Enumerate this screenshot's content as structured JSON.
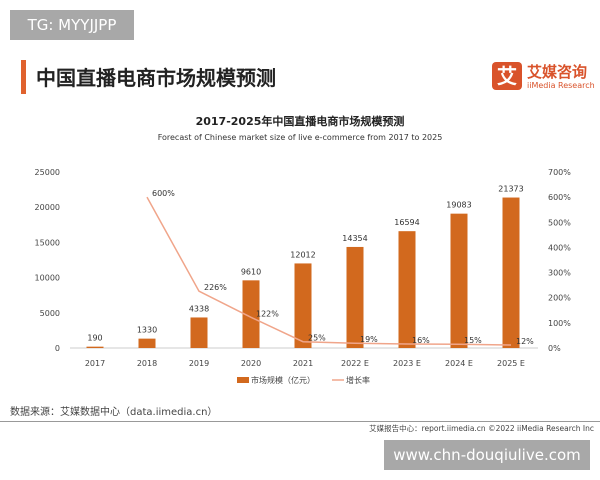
{
  "watermarks": {
    "top_left": "TG: MYYJJPP",
    "bottom_right": "www.chn-douqiulive.com"
  },
  "header": {
    "title": "中国直播电商市场规模预测",
    "logo_mark": "艾",
    "logo_cn": "艾媒咨询",
    "logo_en": "iiMedia Research"
  },
  "chart_data": {
    "type": "bar",
    "title": "2017-2025年中国直播电商市场规模预测",
    "subtitle": "Forecast of Chinese market size of live e-commerce from 2017 to 2025",
    "categories": [
      "2017",
      "2018",
      "2019",
      "2020",
      "2021",
      "2022 E",
      "2023 E",
      "2024 E",
      "2025 E"
    ],
    "series": [
      {
        "name": "市场规模（亿元）",
        "type": "bar",
        "axis": "left",
        "color": "#d2691e",
        "values": [
          190,
          1330,
          4338,
          9610,
          12012,
          14354,
          16594,
          19083,
          21373
        ],
        "labels": [
          "190",
          "1330",
          "4338",
          "9610",
          "12012",
          "14354",
          "16594",
          "19083",
          "21373"
        ]
      },
      {
        "name": "增长率",
        "type": "line",
        "axis": "right",
        "color": "#f0a58a",
        "values": [
          null,
          600,
          226,
          122,
          25,
          19,
          16,
          15,
          12
        ],
        "labels": [
          "",
          "600%",
          "226%",
          "122%",
          "25%",
          "19%",
          "16%",
          "15%",
          "12%"
        ]
      }
    ],
    "left_axis": {
      "range": [
        0,
        25000
      ],
      "ticks": [
        "0",
        "5000",
        "10000",
        "15000",
        "20000",
        "25000"
      ]
    },
    "right_axis": {
      "range": [
        0,
        700
      ],
      "ticks": [
        "0%",
        "100%",
        "200%",
        "300%",
        "400%",
        "500%",
        "600%",
        "700%"
      ]
    },
    "grid": false,
    "legend": "bottom"
  },
  "footer": {
    "source": "数据来源：艾媒数据中心（data.iimedia.cn）",
    "credit": "艾媒报告中心：report.iimedia.cn   ©2022  iiMedia Research  Inc"
  }
}
